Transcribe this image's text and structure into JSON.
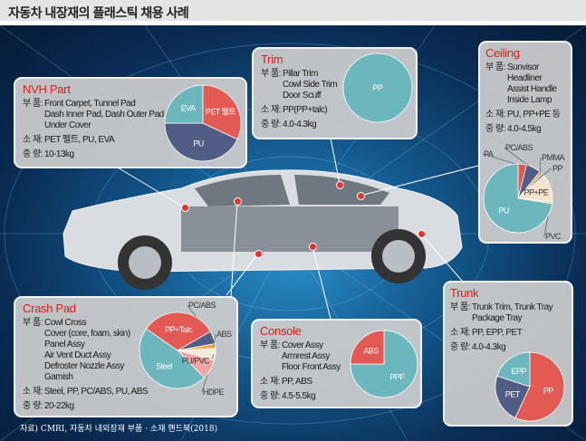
{
  "title": "자동차 내장재의 플래스틱 채용 사례",
  "source": "자료) CMRI, 자동차 내외장재 부품 · 소재 핸드북(2018)",
  "labels": {
    "parts": "부 품:",
    "materials": "소 재:",
    "weight": "중 량:"
  },
  "colors": {
    "red": "#e35a55",
    "navy": "#525d85",
    "teal": "#6bb7bd",
    "cream": "#f3e3cc",
    "orange": "#f2a74b",
    "pink": "#f2a3a3",
    "title": "#d8201b"
  },
  "panels": {
    "nvh": {
      "title": "NVH Part",
      "parts": [
        "Front Carpet, Tunnel Pad",
        "Dash Inner Pad, Dash Outer Pad",
        "Under Cover"
      ],
      "materials": "PET 펠트, PU, EVA",
      "weight": "10-13kg",
      "chart_data": {
        "type": "pie",
        "slices": [
          {
            "label": "PET 펠트",
            "value": 32,
            "color": "#e35a55"
          },
          {
            "label": "PU",
            "value": 43,
            "color": "#525d85"
          },
          {
            "label": "EVA",
            "value": 25,
            "color": "#6bb7bd"
          }
        ]
      }
    },
    "trim": {
      "title": "Trim",
      "parts": [
        "Pillar Trim",
        "Cowl Side Trim",
        "Door Scuff"
      ],
      "materials": "PP(PP+talc)",
      "weight": "4.0-4.3kg",
      "chart_data": {
        "type": "pie",
        "slices": [
          {
            "label": "PP",
            "value": 100,
            "color": "#6bb7bd"
          }
        ]
      }
    },
    "ceiling": {
      "title": "Ceiling",
      "parts": [
        "Sunvisor",
        "Headliner",
        "Assist Handle",
        "Inside Lamp"
      ],
      "materials": "PU, PP+PE 등",
      "weight": "4.0-4.5kg",
      "chart_data": {
        "type": "pie",
        "slices": [
          {
            "label": "PA",
            "value": 4,
            "color": "#e35a55"
          },
          {
            "label": "PC/ABS",
            "value": 7,
            "color": "#525d85"
          },
          {
            "label": "PMMA",
            "value": 1.5,
            "color": "#f2a74b"
          },
          {
            "label": "PP",
            "value": 1,
            "color": "#4a6fa5"
          },
          {
            "label": "PP+PE",
            "value": 13,
            "color": "#f3e3cc"
          },
          {
            "label": "PVC",
            "value": 1,
            "color": "#e8d0b0"
          },
          {
            "label": "PU",
            "value": 72.5,
            "color": "#6bb7bd"
          }
        ]
      }
    },
    "crash": {
      "title": "Crash Pad",
      "parts": [
        "Cowl Cross",
        "Cover (core, foam, skin)",
        "Panel Assy",
        "Air Vent Duct Assy",
        "Defroster Nozzle Assy",
        "Garnish"
      ],
      "materials": "Steel, PP, PC/ABS, PU, ABS",
      "weight": "20-22kg",
      "chart_data": {
        "type": "pie",
        "slices": [
          {
            "label": "PC/ABS",
            "value": 5.5,
            "color": "#525d85"
          },
          {
            "label": "ABS",
            "value": 2,
            "color": "#f2a74b"
          },
          {
            "label": "HDPE",
            "value": 5,
            "color": "#f3ead8"
          },
          {
            "label": "PU/PVC",
            "value": 8.5,
            "color": "#f2a3a3"
          },
          {
            "label": "Steel",
            "value": 47,
            "color": "#6bb7bd"
          },
          {
            "label": "PP+Talc",
            "value": 32,
            "color": "#e35a55"
          }
        ]
      }
    },
    "console": {
      "title": "Console",
      "parts": [
        "Cover Assy",
        "Armrest Assy",
        "Floor Front Assy"
      ],
      "materials": "PP, ABS",
      "weight": "4.5-5.5kg",
      "chart_data": {
        "type": "pie",
        "slices": [
          {
            "label": "PPF",
            "value": 75,
            "color": "#6bb7bd"
          },
          {
            "label": "ABS",
            "value": 25,
            "color": "#e35a55"
          }
        ]
      }
    },
    "trunk": {
      "title": "Trunk",
      "parts": [
        "Trunk Trim, Trunk Tray",
        "Package Tray"
      ],
      "materials": "PP, EPP, PET",
      "weight": "4.0-4.3kg",
      "chart_data": {
        "type": "pie",
        "slices": [
          {
            "label": "PP",
            "value": 57,
            "color": "#e35a55"
          },
          {
            "label": "PET",
            "value": 23,
            "color": "#525d85"
          },
          {
            "label": "EPP",
            "value": 20,
            "color": "#6bb7bd"
          }
        ]
      }
    }
  }
}
